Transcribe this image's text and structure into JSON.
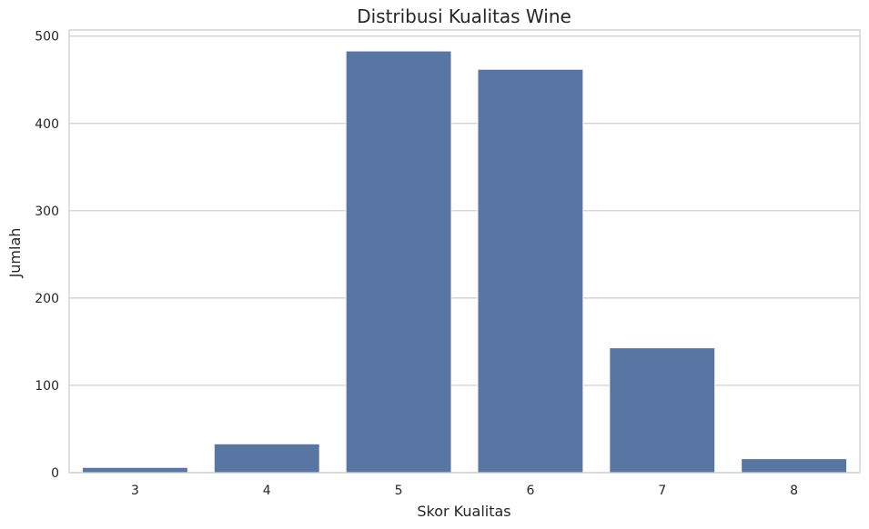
{
  "chart_data": {
    "type": "bar",
    "title": "Distribusi Kualitas Wine",
    "xlabel": "Skor Kualitas",
    "ylabel": "Jumlah",
    "categories": [
      "3",
      "4",
      "5",
      "6",
      "7",
      "8"
    ],
    "values": [
      6,
      33,
      483,
      462,
      143,
      16
    ],
    "ylim": [
      0,
      507
    ],
    "yticks": [
      0,
      100,
      200,
      300,
      400,
      500
    ],
    "grid": true,
    "bar_color": "#5875a4",
    "grid_color": "#cccccc",
    "frame_color": "#cccccc"
  }
}
